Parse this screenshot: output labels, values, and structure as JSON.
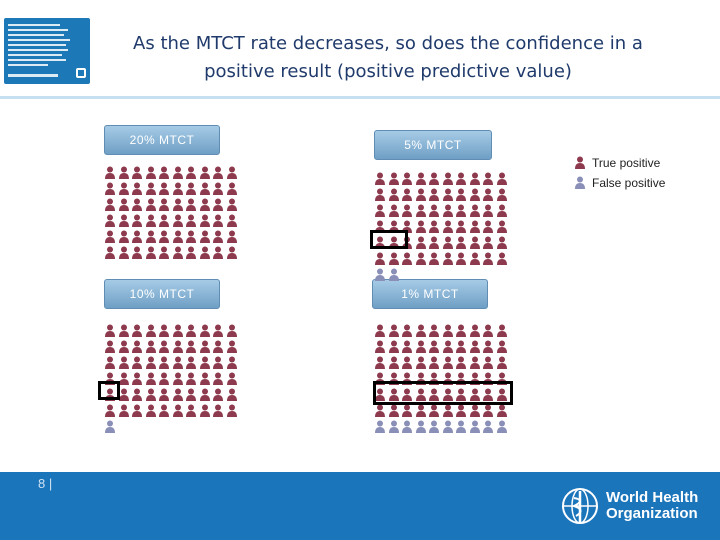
{
  "slide": {
    "title_line1": "As the MTCT rate decreases, so does the confidence in a",
    "title_line2": "positive result (positive predictive value)",
    "page_number": "8 |"
  },
  "panels": [
    {
      "label": "20% MTCT",
      "true_positive": 60,
      "false_positive": 0
    },
    {
      "label": "5% MTCT",
      "true_positive": 60,
      "false_positive": 2
    },
    {
      "label": "10% MTCT",
      "true_positive": 60,
      "false_positive": 1
    },
    {
      "label": "1% MTCT",
      "true_positive": 60,
      "false_positive": 10
    }
  ],
  "legend": {
    "true_positive": "True positive",
    "false_positive": "False positive"
  },
  "colors": {
    "true_positive": "#8e3a4e",
    "false_positive": "#8a8fb8",
    "header_blue": "#1b75bb"
  },
  "footer": {
    "logo_text_line1": "World Health",
    "logo_text_line2": "Organization",
    "logo_icon": "who-emblem-icon"
  }
}
